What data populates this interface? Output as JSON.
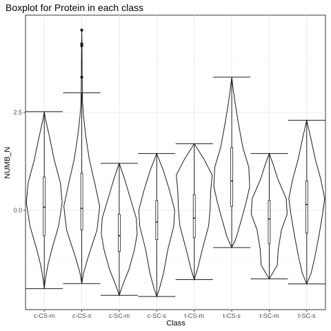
{
  "chart_data": {
    "type": "violin",
    "title": "Boxplot for Protein in each class",
    "xlabel": "Class",
    "ylabel": "NUMB_N",
    "categories": [
      "c-CS-m",
      "c-CS-s",
      "c-SC-m",
      "c-SC-s",
      "t-CS-m",
      "t-CS-s",
      "t-SC-m",
      "t-SC-s"
    ],
    "y_ticks": [
      0.0,
      2.5
    ],
    "y_tick_labels": [
      "0.0",
      "2.5"
    ],
    "ylim": [
      -2.25,
      5.0
    ],
    "grid": true,
    "series": [
      {
        "min": -2.0,
        "q1": -0.65,
        "median": 0.08,
        "q3": 0.85,
        "max": 2.52,
        "outliers": [],
        "density": [
          [
            -2.0,
            0.0
          ],
          [
            -1.8,
            0.05
          ],
          [
            -1.4,
            0.2
          ],
          [
            -1.0,
            0.42
          ],
          [
            -0.4,
            0.8
          ],
          [
            0.2,
            1.0
          ],
          [
            0.7,
            0.9
          ],
          [
            1.3,
            0.55
          ],
          [
            1.9,
            0.28
          ],
          [
            2.3,
            0.08
          ],
          [
            2.52,
            0.0
          ]
        ]
      },
      {
        "min": -1.87,
        "q1": -0.5,
        "median": 0.05,
        "q3": 0.95,
        "max": 3.0,
        "outliers": [
          3.4,
          4.2,
          4.25,
          4.6
        ],
        "density": [
          [
            -1.87,
            0.0
          ],
          [
            -1.6,
            0.1
          ],
          [
            -1.2,
            0.35
          ],
          [
            -0.5,
            0.85
          ],
          [
            0.1,
            1.0
          ],
          [
            0.7,
            0.72
          ],
          [
            1.3,
            0.42
          ],
          [
            1.9,
            0.22
          ],
          [
            2.4,
            0.1
          ],
          [
            2.8,
            0.04
          ],
          [
            3.4,
            0.02
          ],
          [
            4.0,
            0.015
          ],
          [
            4.6,
            0.0
          ]
        ]
      },
      {
        "min": -2.17,
        "q1": -1.05,
        "median": -0.65,
        "q3": -0.1,
        "max": 1.2,
        "outliers": [],
        "density": [
          [
            -2.17,
            0.0
          ],
          [
            -1.9,
            0.2
          ],
          [
            -1.5,
            0.55
          ],
          [
            -1.0,
            0.85
          ],
          [
            -0.6,
            1.0
          ],
          [
            -0.2,
            0.95
          ],
          [
            0.3,
            0.62
          ],
          [
            0.8,
            0.3
          ],
          [
            1.2,
            0.0
          ]
        ]
      },
      {
        "min": -2.2,
        "q1": -0.75,
        "median": -0.3,
        "q3": 0.25,
        "max": 1.45,
        "outliers": [],
        "density": [
          [
            -2.2,
            0.0
          ],
          [
            -2.0,
            0.15
          ],
          [
            -1.6,
            0.38
          ],
          [
            -1.0,
            0.62
          ],
          [
            -0.4,
            0.95
          ],
          [
            0.0,
            1.0
          ],
          [
            0.5,
            0.72
          ],
          [
            1.0,
            0.38
          ],
          [
            1.45,
            0.0
          ]
        ]
      },
      {
        "min": -1.77,
        "q1": -0.7,
        "median": -0.2,
        "q3": 0.4,
        "max": 1.7,
        "outliers": [],
        "density": [
          [
            -1.77,
            0.0
          ],
          [
            -1.5,
            0.18
          ],
          [
            -1.0,
            0.45
          ],
          [
            -0.4,
            0.8
          ],
          [
            0.0,
            0.88
          ],
          [
            0.5,
            0.92
          ],
          [
            0.9,
            1.0
          ],
          [
            1.3,
            0.55
          ],
          [
            1.7,
            0.0
          ]
        ]
      },
      {
        "min": -0.95,
        "q1": 0.1,
        "median": 0.75,
        "q3": 1.6,
        "max": 3.4,
        "outliers": [],
        "density": [
          [
            -0.95,
            0.0
          ],
          [
            -0.7,
            0.25
          ],
          [
            -0.3,
            0.5
          ],
          [
            0.2,
            0.8
          ],
          [
            0.6,
            1.0
          ],
          [
            1.1,
            0.95
          ],
          [
            1.6,
            0.62
          ],
          [
            2.2,
            0.38
          ],
          [
            2.7,
            0.2
          ],
          [
            3.1,
            0.08
          ],
          [
            3.4,
            0.0
          ]
        ]
      },
      {
        "min": -1.75,
        "q1": -0.85,
        "median": -0.22,
        "q3": 0.25,
        "max": 1.45,
        "outliers": [],
        "density": [
          [
            -1.75,
            0.0
          ],
          [
            -1.4,
            0.45
          ],
          [
            -1.0,
            0.5
          ],
          [
            -0.5,
            0.68
          ],
          [
            -0.1,
            1.0
          ],
          [
            0.3,
            0.95
          ],
          [
            0.8,
            0.48
          ],
          [
            1.2,
            0.2
          ],
          [
            1.45,
            0.0
          ]
        ]
      },
      {
        "min": -1.88,
        "q1": -0.58,
        "median": 0.15,
        "q3": 0.75,
        "max": 2.3,
        "outliers": [],
        "density": [
          [
            -1.88,
            0.0
          ],
          [
            -1.6,
            0.25
          ],
          [
            -1.2,
            0.45
          ],
          [
            -0.6,
            0.7
          ],
          [
            -0.1,
            0.88
          ],
          [
            0.3,
            1.0
          ],
          [
            0.8,
            0.78
          ],
          [
            1.3,
            0.48
          ],
          [
            1.9,
            0.2
          ],
          [
            2.3,
            0.0
          ]
        ]
      }
    ]
  }
}
